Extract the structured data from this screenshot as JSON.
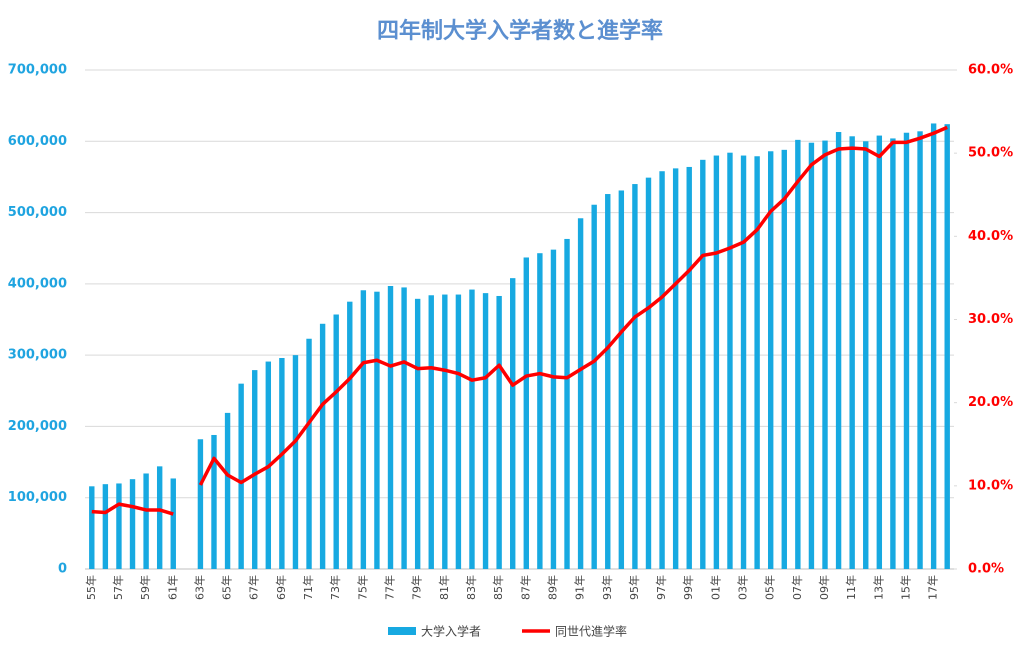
{
  "chart_data": {
    "type": "bar-line",
    "title": "四年制大学入学者数と進学率",
    "categories": [
      "55年",
      null,
      "57年",
      null,
      "59年",
      null,
      "61年",
      null,
      "63年",
      null,
      "65年",
      null,
      "67年",
      null,
      "69年",
      null,
      "71年",
      null,
      "73年",
      null,
      "75年",
      null,
      "77年",
      null,
      "79年",
      null,
      "81年",
      null,
      "83年",
      null,
      "85年",
      null,
      "87年",
      null,
      "89年",
      null,
      "91年",
      null,
      "93年",
      null,
      "95年",
      null,
      "97年",
      null,
      "99年",
      null,
      "01年",
      null,
      "03年",
      null,
      "05年",
      null,
      "07年",
      null,
      "09年",
      null,
      "11年",
      null,
      "13年",
      null,
      "15年",
      null,
      "17年",
      null
    ],
    "series": [
      {
        "name": "大学入学者",
        "type": "bar",
        "color": "#17a9e1",
        "values": [
          116000,
          119000,
          120000,
          126000,
          134000,
          144000,
          127000,
          null,
          182000,
          188000,
          219000,
          260000,
          279000,
          291000,
          296000,
          300000,
          323000,
          344000,
          357000,
          375000,
          391000,
          389000,
          397000,
          395000,
          379000,
          384000,
          385000,
          385000,
          392000,
          387000,
          383000,
          408000,
          437000,
          443000,
          448000,
          463000,
          492000,
          511000,
          526000,
          531000,
          540000,
          549000,
          558000,
          562000,
          564000,
          574000,
          580000,
          584000,
          580000,
          579000,
          586000,
          588000,
          602000,
          598000,
          601000,
          613000,
          607000,
          600000,
          608000,
          604000,
          612000,
          614000,
          625000,
          624000
        ]
      },
      {
        "name": "同世代進学率",
        "type": "line",
        "axis": "y2",
        "color": "#ff0000",
        "values": [
          6.9,
          6.8,
          7.8,
          7.5,
          7.1,
          7.1,
          6.6,
          null,
          10.1,
          13.3,
          11.3,
          10.4,
          11.4,
          12.3,
          13.8,
          15.4,
          17.6,
          19.8,
          21.3,
          22.9,
          24.8,
          25.1,
          24.4,
          24.9,
          24.1,
          24.2,
          23.9,
          23.5,
          22.7,
          23.0,
          24.5,
          22.1,
          23.2,
          23.5,
          23.1,
          23.0,
          24.0,
          25.0,
          26.6,
          28.5,
          30.3,
          31.4,
          32.7,
          34.3,
          35.9,
          37.7,
          38.0,
          38.6,
          39.3,
          40.8,
          43.0,
          44.5,
          46.6,
          48.6,
          49.8,
          50.5,
          50.6,
          50.5,
          49.6,
          51.3,
          51.3,
          51.8,
          52.4,
          53.1
        ]
      }
    ],
    "ylim": [
      0,
      700000
    ],
    "yticks": [
      0,
      {
        "value": 100000,
        "label": "100,000"
      },
      {
        "value": 200000,
        "label": "200,000"
      },
      {
        "value": 300000,
        "label": "300,000"
      },
      {
        "value": 400000,
        "label": "400,000"
      },
      {
        "value": 500000,
        "label": "500,000"
      },
      {
        "value": 600000,
        "label": "600,000"
      },
      {
        "value": 700000,
        "label": "700,000"
      }
    ],
    "y2lim": [
      0,
      60
    ],
    "y2ticks": [
      {
        "value": 0,
        "label": "0.0%"
      },
      {
        "value": 10,
        "label": "10.0%"
      },
      {
        "value": 20,
        "label": "20.0%"
      },
      {
        "value": 30,
        "label": "30.0%"
      },
      {
        "value": 40,
        "label": "40.0%"
      },
      {
        "value": 50,
        "label": "50.0%"
      },
      {
        "value": 60,
        "label": "60.0%"
      }
    ],
    "grid": true,
    "legend": "bottom"
  }
}
